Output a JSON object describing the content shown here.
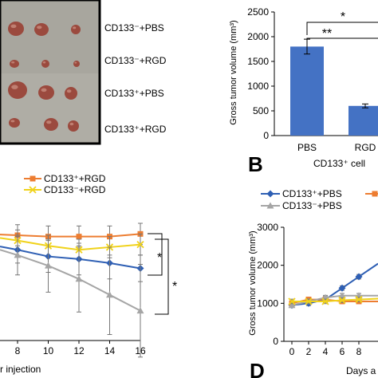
{
  "colors": {
    "photo_bg": "#a8a69e",
    "tumor": "#9b4a3e",
    "bar_fill": "#4472c4",
    "cd133p_pbs": "#2e5fb4",
    "cd133p_rgd": "#ed7d31",
    "cd133n_rgd": "#f0d21a",
    "cd133n_pbs": "#a5a5a5"
  },
  "photo_panel": {
    "row_labels": [
      "CD133⁻+PBS",
      "CD133⁻+RGD",
      "CD133⁺+PBS",
      "CD133⁺+RGD"
    ]
  },
  "panel_b": {
    "letter": "B",
    "sig_outer": "*",
    "sig_inner": "**",
    "xlabel": "CD133⁺ cell"
  },
  "panel_c": {
    "xlabel_fragment": "r injection",
    "sig_upper": "*",
    "sig_lower": "*"
  },
  "panel_d": {
    "letter": "D",
    "xlabel_fragment": "Days a"
  },
  "chart_data": [
    {
      "id": "B",
      "type": "bar",
      "title": "",
      "categories": [
        "PBS",
        "RGD"
      ],
      "values": [
        1800,
        600
      ],
      "errors": [
        150,
        40
      ],
      "xlabel": "CD133⁺ cell",
      "ylabel": "Gross  tumor volume (mm³)",
      "ylim": [
        0,
        2500
      ],
      "yticks": [
        0,
        500,
        1000,
        1500,
        2000,
        2500
      ],
      "grid": false
    },
    {
      "id": "C",
      "type": "line",
      "x": [
        8,
        10,
        12,
        14,
        16
      ],
      "xticks": [
        8,
        10,
        12,
        14,
        16
      ],
      "xlabel": "r injection",
      "legend_position": "top",
      "series": [
        {
          "name": "CD133⁺+RGD",
          "color_key": "cd133p_rgd",
          "marker": "square",
          "values": [
            100,
            99,
            99,
            99,
            101
          ],
          "errors": [
            8,
            8,
            8,
            8,
            8
          ]
        },
        {
          "name": "CD133⁻+RGD",
          "color_key": "cd133n_rgd",
          "marker": "x",
          "values": [
            96,
            92,
            89,
            91,
            93
          ],
          "errors": [
            8,
            8,
            8,
            8,
            8
          ]
        },
        {
          "name": "",
          "color_key": "cd133p_pbs",
          "marker": "diamond",
          "values": [
            89,
            84,
            82,
            79,
            75
          ],
          "errors": [
            10,
            12,
            12,
            12,
            10
          ]
        },
        {
          "name": "",
          "color_key": "cd133n_pbs",
          "marker": "triangle",
          "values": [
            85,
            77,
            67,
            55,
            43
          ],
          "errors": [
            15,
            20,
            25,
            30,
            35
          ]
        }
      ]
    },
    {
      "id": "D",
      "type": "line",
      "x": [
        0,
        2,
        4,
        6,
        8
      ],
      "xticks": [
        0,
        2,
        4,
        6,
        8
      ],
      "xlabel": "Days a",
      "ylabel": "Gross tumor volume (mm³)",
      "ylim": [
        0,
        3000
      ],
      "yticks": [
        0,
        1000,
        2000,
        3000
      ],
      "legend_position": "top",
      "series": [
        {
          "name": "CD133⁺+PBS",
          "color_key": "cd133p_pbs",
          "marker": "diamond",
          "values": [
            950,
            1000,
            1100,
            1400,
            1700
          ],
          "errors": [
            60,
            60,
            80,
            60,
            60
          ]
        },
        {
          "name": "",
          "color_key": "cd133p_rgd",
          "marker": "square",
          "values": [
            1000,
            1100,
            1100,
            1050,
            1050
          ],
          "errors": [
            60,
            60,
            60,
            60,
            60
          ]
        },
        {
          "name": "CD133⁻+PBS",
          "color_key": "cd133n_pbs",
          "marker": "triangle",
          "values": [
            950,
            1050,
            1150,
            1200,
            1200
          ],
          "errors": [
            60,
            60,
            60,
            60,
            60
          ]
        },
        {
          "name": "",
          "color_key": "cd133n_rgd",
          "marker": "x",
          "values": [
            1050,
            1050,
            1050,
            1080,
            1100
          ],
          "errors": [
            60,
            60,
            60,
            60,
            60
          ]
        }
      ]
    }
  ]
}
